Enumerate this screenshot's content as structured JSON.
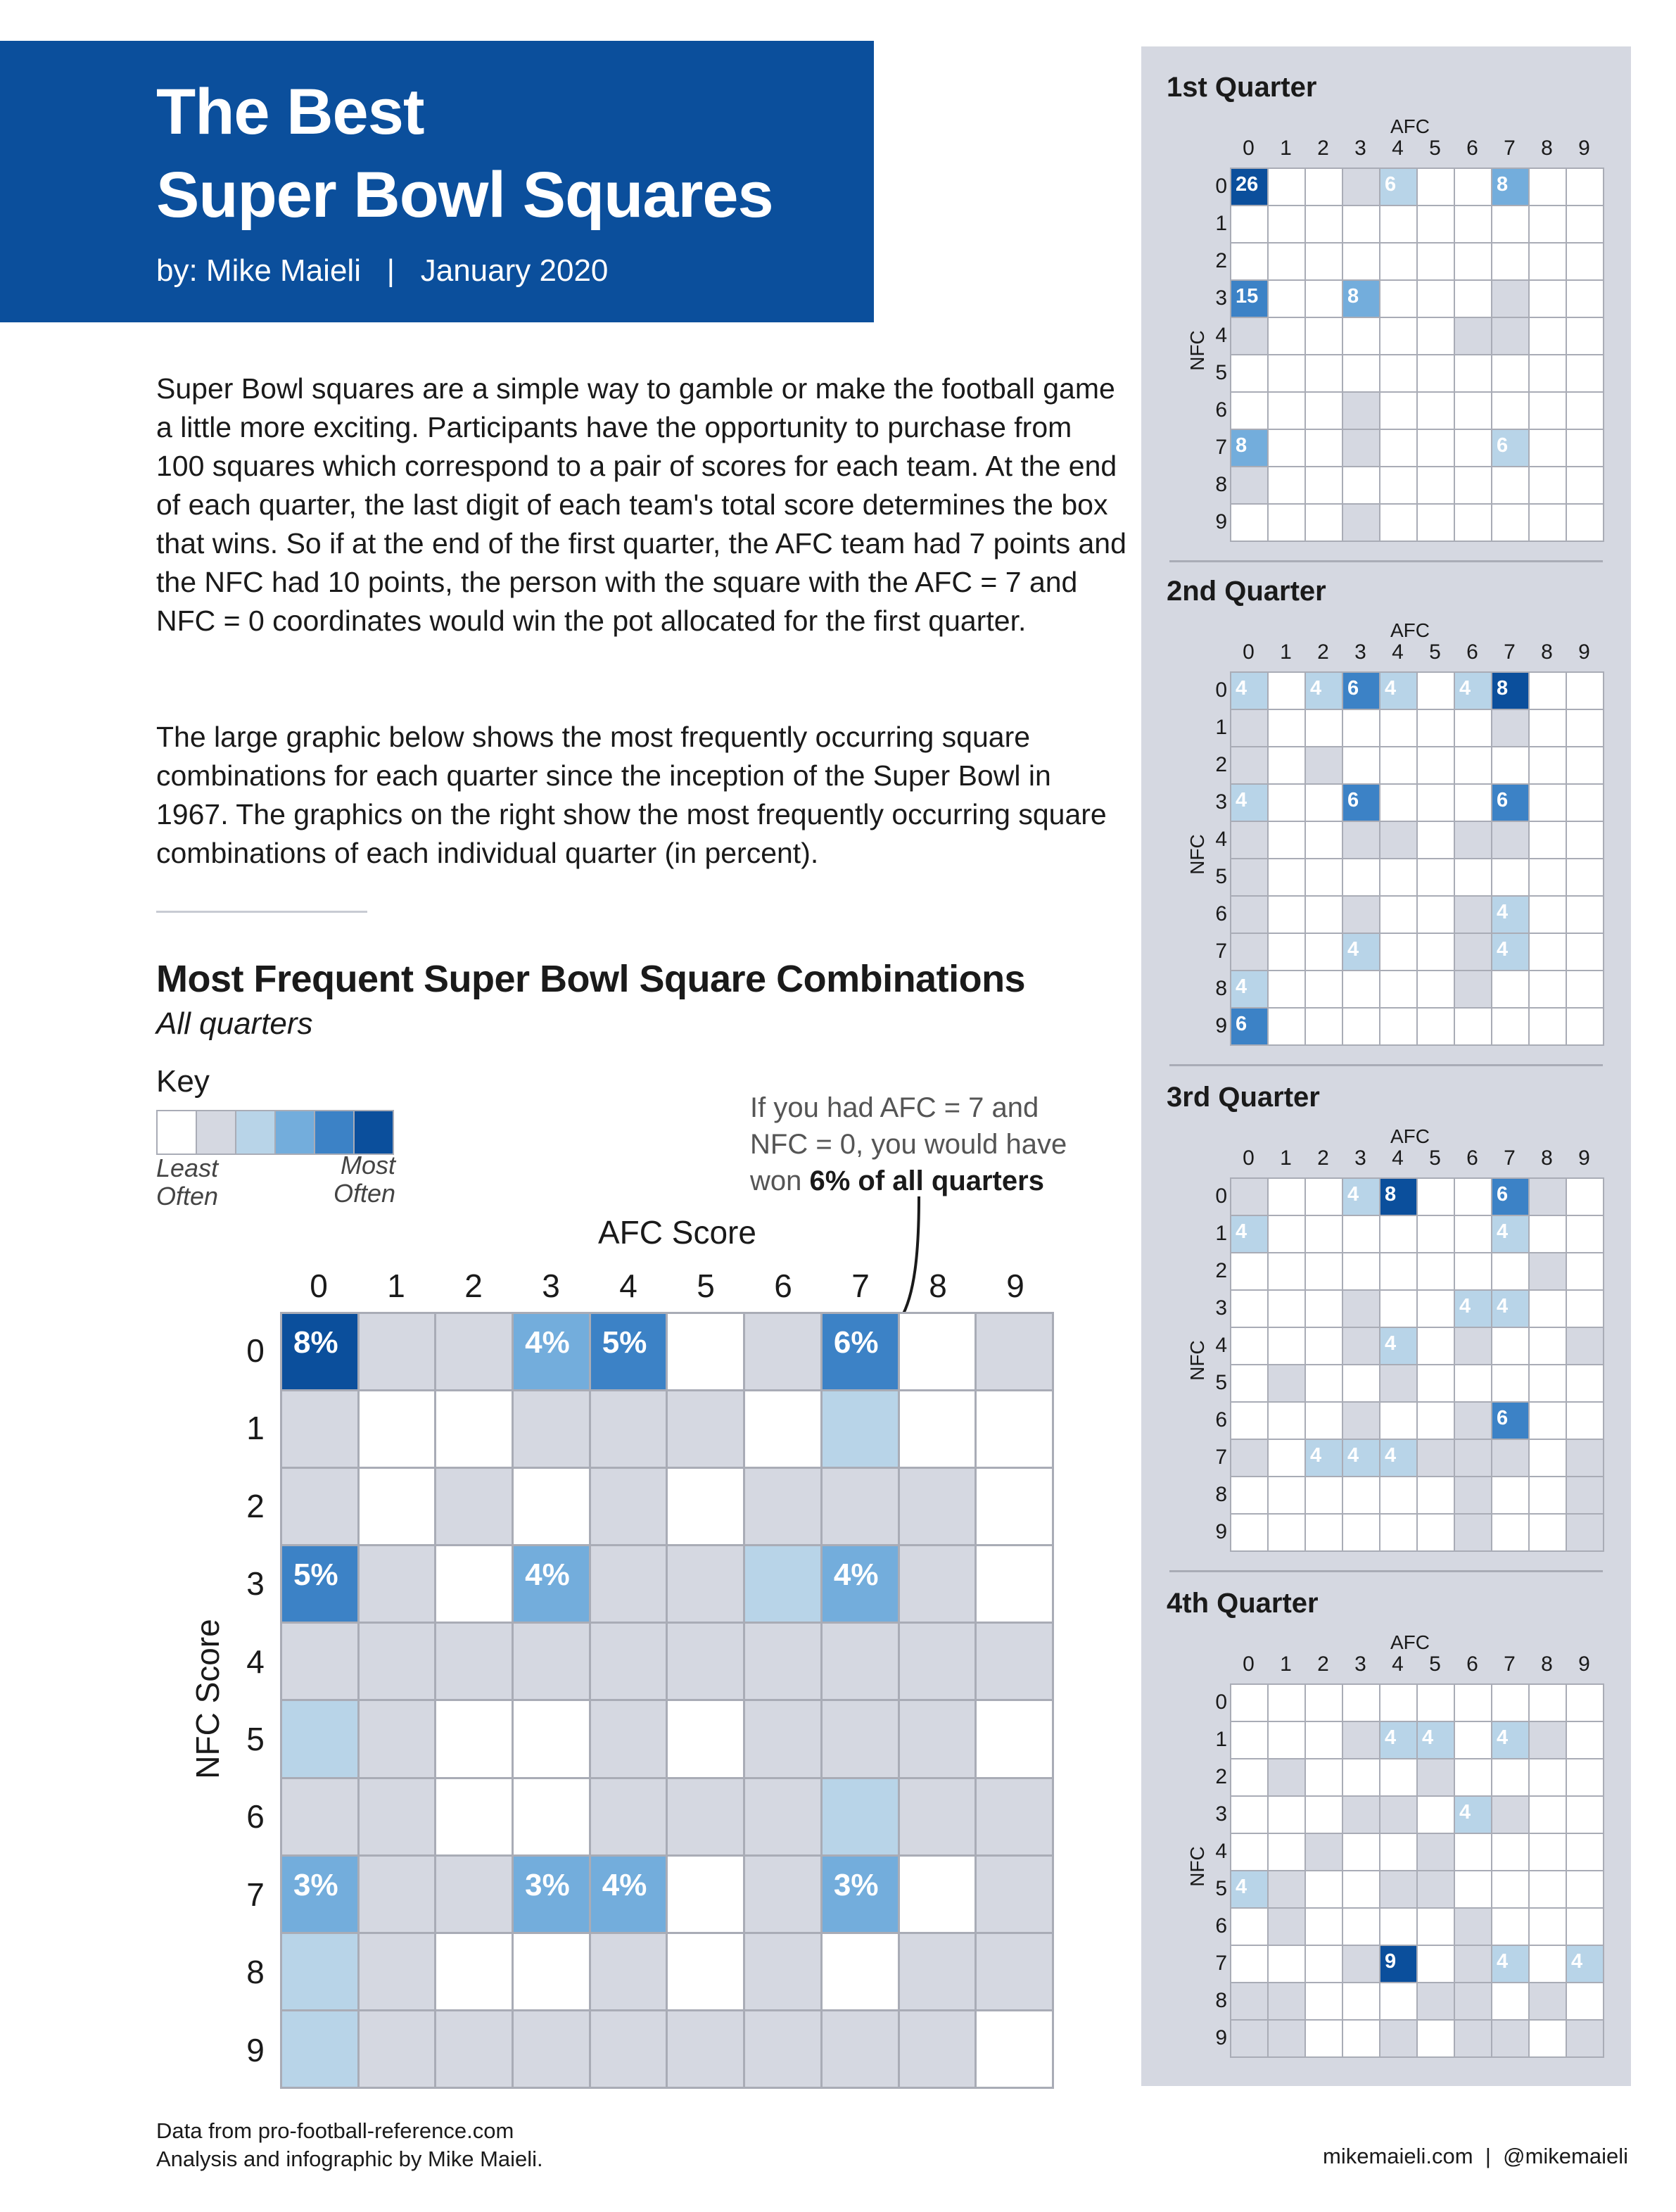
{
  "header": {
    "title": "The Best\nSuper Bowl Squares",
    "byline": "by: Mike Maieli   |   January 2020"
  },
  "intro": {
    "paragraph1": "Super Bowl squares are a simple way to gamble or make the football game a little more exciting. Participants have the opportunity to purchase from 100 squares which correspond to a pair of scores for each team. At the end of each quarter, the last digit of each team's total score determines the box that wins. So if at the end of the first quarter, the AFC team had 7 points and the NFC had 10 points, the person with the square with the AFC = 7 and NFC = 0 coordinates would win the pot allocated for the first quarter.",
    "paragraph2": "The large graphic below shows the most frequently occurring square combinations for each quarter since the inception of the Super Bowl in 1967. The graphics on the right show the most frequently occurring square combinations of each individual quarter (in percent)."
  },
  "key": {
    "label": "Key",
    "least": "Least\nOften",
    "most": "Most\nOften",
    "colors": [
      "#ffffff",
      "#d5d8e1",
      "#b8d4e8",
      "#73addc",
      "#3c82c6",
      "#0b4f9c"
    ]
  },
  "annotation": {
    "line1": "If you had AFC = 7 and",
    "line2": "NFC = 0, you would have",
    "line3_prefix": "won ",
    "line3_bold": "6% of all quarters"
  },
  "palette": [
    "#ffffff",
    "#d5d8e1",
    "#b8d4e8",
    "#73addc",
    "#3c82c6",
    "#0b4f9c"
  ],
  "chart_data": [
    {
      "type": "heatmap",
      "title": "Most Frequent Super Bowl Square Combinations",
      "subtitle": "All quarters",
      "xlabel": "AFC Score",
      "ylabel": "NFC Score",
      "x": [
        "0",
        "1",
        "2",
        "3",
        "4",
        "5",
        "6",
        "7",
        "8",
        "9"
      ],
      "y": [
        "0",
        "1",
        "2",
        "3",
        "4",
        "5",
        "6",
        "7",
        "8",
        "9"
      ],
      "value_format": "%",
      "labels": [
        [
          "8",
          "",
          "",
          "4",
          "5",
          "",
          "",
          "6",
          "",
          ""
        ],
        [
          "",
          "",
          "",
          "",
          "",
          "",
          "",
          "",
          "",
          ""
        ],
        [
          "",
          "",
          "",
          "",
          "",
          "",
          "",
          "",
          "",
          ""
        ],
        [
          "5",
          "",
          "",
          "4",
          "",
          "",
          "",
          "4",
          "",
          ""
        ],
        [
          "",
          "",
          "",
          "",
          "",
          "",
          "",
          "",
          "",
          ""
        ],
        [
          "",
          "",
          "",
          "",
          "",
          "",
          "",
          "",
          "",
          ""
        ],
        [
          "",
          "",
          "",
          "",
          "",
          "",
          "",
          "",
          "",
          ""
        ],
        [
          "3",
          "",
          "",
          "3",
          "4",
          "",
          "",
          "3",
          "",
          ""
        ],
        [
          "",
          "",
          "",
          "",
          "",
          "",
          "",
          "",
          "",
          ""
        ],
        [
          "",
          "",
          "",
          "",
          "",
          "",
          "",
          "",
          "",
          ""
        ]
      ],
      "levels": [
        [
          5,
          1,
          1,
          3,
          4,
          0,
          1,
          4,
          0,
          1
        ],
        [
          1,
          0,
          0,
          1,
          1,
          1,
          0,
          2,
          0,
          0
        ],
        [
          1,
          0,
          1,
          0,
          1,
          0,
          1,
          1,
          1,
          0
        ],
        [
          4,
          1,
          0,
          3,
          1,
          1,
          2,
          3,
          1,
          0
        ],
        [
          1,
          1,
          1,
          1,
          1,
          1,
          1,
          1,
          1,
          1
        ],
        [
          2,
          1,
          0,
          0,
          1,
          0,
          1,
          1,
          1,
          0
        ],
        [
          1,
          1,
          0,
          0,
          1,
          1,
          1,
          2,
          1,
          1
        ],
        [
          3,
          1,
          1,
          3,
          3,
          0,
          1,
          3,
          0,
          1
        ],
        [
          2,
          1,
          0,
          0,
          1,
          0,
          1,
          0,
          1,
          1
        ],
        [
          2,
          1,
          1,
          1,
          1,
          1,
          1,
          1,
          1,
          0
        ]
      ]
    },
    {
      "type": "heatmap",
      "title": "1st Quarter",
      "xlabel": "AFC",
      "ylabel": "NFC",
      "x": [
        "0",
        "1",
        "2",
        "3",
        "4",
        "5",
        "6",
        "7",
        "8",
        "9"
      ],
      "y": [
        "0",
        "1",
        "2",
        "3",
        "4",
        "5",
        "6",
        "7",
        "8",
        "9"
      ],
      "labels": [
        [
          "26",
          "",
          "",
          "",
          "6",
          "",
          "",
          "8",
          "",
          ""
        ],
        [
          "",
          "",
          "",
          "",
          "",
          "",
          "",
          "",
          "",
          ""
        ],
        [
          "",
          "",
          "",
          "",
          "",
          "",
          "",
          "",
          "",
          ""
        ],
        [
          "15",
          "",
          "",
          "8",
          "",
          "",
          "",
          "",
          "",
          ""
        ],
        [
          "",
          "",
          "",
          "",
          "",
          "",
          "",
          "",
          "",
          ""
        ],
        [
          "",
          "",
          "",
          "",
          "",
          "",
          "",
          "",
          "",
          ""
        ],
        [
          "",
          "",
          "",
          "",
          "",
          "",
          "",
          "",
          "",
          ""
        ],
        [
          "8",
          "",
          "",
          "",
          "",
          "",
          "",
          "6",
          "",
          ""
        ],
        [
          "",
          "",
          "",
          "",
          "",
          "",
          "",
          "",
          "",
          ""
        ],
        [
          "",
          "",
          "",
          "",
          "",
          "",
          "",
          "",
          "",
          ""
        ]
      ],
      "levels": [
        [
          5,
          0,
          0,
          1,
          2,
          0,
          0,
          3,
          0,
          0
        ],
        [
          0,
          0,
          0,
          0,
          0,
          0,
          0,
          0,
          0,
          0
        ],
        [
          0,
          0,
          0,
          0,
          0,
          0,
          0,
          0,
          0,
          0
        ],
        [
          4,
          0,
          0,
          3,
          0,
          0,
          0,
          1,
          0,
          0
        ],
        [
          1,
          0,
          0,
          0,
          0,
          0,
          1,
          1,
          0,
          0
        ],
        [
          0,
          0,
          0,
          0,
          0,
          0,
          0,
          0,
          0,
          0
        ],
        [
          0,
          0,
          0,
          1,
          0,
          0,
          0,
          0,
          0,
          0
        ],
        [
          3,
          0,
          0,
          1,
          0,
          0,
          0,
          2,
          0,
          0
        ],
        [
          1,
          0,
          0,
          0,
          0,
          0,
          0,
          0,
          0,
          0
        ],
        [
          0,
          0,
          0,
          1,
          0,
          0,
          0,
          0,
          0,
          0
        ]
      ]
    },
    {
      "type": "heatmap",
      "title": "2nd Quarter",
      "xlabel": "AFC",
      "ylabel": "NFC",
      "x": [
        "0",
        "1",
        "2",
        "3",
        "4",
        "5",
        "6",
        "7",
        "8",
        "9"
      ],
      "y": [
        "0",
        "1",
        "2",
        "3",
        "4",
        "5",
        "6",
        "7",
        "8",
        "9"
      ],
      "labels": [
        [
          "4",
          "",
          "4",
          "6",
          "4",
          "",
          "4",
          "8",
          "",
          ""
        ],
        [
          "",
          "",
          "",
          "",
          "",
          "",
          "",
          "",
          "",
          ""
        ],
        [
          "",
          "",
          "",
          "",
          "",
          "",
          "",
          "",
          "",
          ""
        ],
        [
          "4",
          "",
          "",
          "6",
          "",
          "",
          "",
          "6",
          "",
          ""
        ],
        [
          "",
          "",
          "",
          "",
          "",
          "",
          "",
          "",
          "",
          ""
        ],
        [
          "",
          "",
          "",
          "",
          "",
          "",
          "",
          "",
          "",
          ""
        ],
        [
          "",
          "",
          "",
          "",
          "",
          "",
          "",
          "4",
          "",
          ""
        ],
        [
          "",
          "",
          "",
          "4",
          "",
          "",
          "",
          "4",
          "",
          ""
        ],
        [
          "4",
          "",
          "",
          "",
          "",
          "",
          "",
          "",
          "",
          ""
        ],
        [
          "6",
          "",
          "",
          "",
          "",
          "",
          "",
          "",
          "",
          ""
        ]
      ],
      "levels": [
        [
          2,
          0,
          2,
          4,
          2,
          0,
          2,
          5,
          0,
          0
        ],
        [
          1,
          0,
          0,
          0,
          0,
          0,
          0,
          1,
          0,
          0
        ],
        [
          1,
          0,
          1,
          0,
          0,
          0,
          0,
          0,
          0,
          0
        ],
        [
          2,
          0,
          0,
          4,
          0,
          0,
          0,
          4,
          0,
          0
        ],
        [
          1,
          0,
          0,
          1,
          1,
          0,
          1,
          1,
          0,
          0
        ],
        [
          1,
          0,
          0,
          0,
          0,
          0,
          0,
          0,
          0,
          0
        ],
        [
          1,
          0,
          0,
          1,
          0,
          0,
          1,
          2,
          0,
          0
        ],
        [
          1,
          0,
          0,
          2,
          0,
          0,
          1,
          2,
          0,
          0
        ],
        [
          2,
          0,
          0,
          0,
          0,
          0,
          1,
          0,
          0,
          0
        ],
        [
          4,
          0,
          0,
          0,
          0,
          0,
          0,
          0,
          0,
          0
        ]
      ]
    },
    {
      "type": "heatmap",
      "title": "3rd Quarter",
      "xlabel": "AFC",
      "ylabel": "NFC",
      "x": [
        "0",
        "1",
        "2",
        "3",
        "4",
        "5",
        "6",
        "7",
        "8",
        "9"
      ],
      "y": [
        "0",
        "1",
        "2",
        "3",
        "4",
        "5",
        "6",
        "7",
        "8",
        "9"
      ],
      "labels": [
        [
          "",
          "",
          "",
          "4",
          "8",
          "",
          "",
          "6",
          "",
          ""
        ],
        [
          "4",
          "",
          "",
          "",
          "",
          "",
          "",
          "4",
          "",
          ""
        ],
        [
          "",
          "",
          "",
          "",
          "",
          "",
          "",
          "",
          "",
          ""
        ],
        [
          "",
          "",
          "",
          "",
          "",
          "",
          "4",
          "4",
          "",
          ""
        ],
        [
          "",
          "",
          "",
          "",
          "4",
          "",
          "",
          "",
          "",
          ""
        ],
        [
          "",
          "",
          "",
          "",
          "",
          "",
          "",
          "",
          "",
          ""
        ],
        [
          "",
          "",
          "",
          "",
          "",
          "",
          "",
          "6",
          "",
          ""
        ],
        [
          "",
          "",
          "4",
          "4",
          "4",
          "",
          "",
          "",
          "",
          ""
        ],
        [
          "",
          "",
          "",
          "",
          "",
          "",
          "",
          "",
          "",
          ""
        ],
        [
          "",
          "",
          "",
          "",
          "",
          "",
          "",
          "",
          "",
          ""
        ]
      ],
      "levels": [
        [
          1,
          0,
          0,
          2,
          5,
          0,
          0,
          4,
          1,
          0
        ],
        [
          2,
          0,
          0,
          0,
          0,
          0,
          0,
          2,
          0,
          0
        ],
        [
          0,
          0,
          0,
          0,
          0,
          0,
          0,
          0,
          1,
          0
        ],
        [
          0,
          0,
          0,
          1,
          0,
          0,
          2,
          2,
          0,
          0
        ],
        [
          0,
          0,
          0,
          1,
          2,
          0,
          1,
          0,
          0,
          1
        ],
        [
          0,
          1,
          0,
          0,
          1,
          0,
          0,
          0,
          0,
          0
        ],
        [
          0,
          0,
          0,
          1,
          0,
          0,
          1,
          4,
          0,
          0
        ],
        [
          1,
          0,
          2,
          2,
          2,
          1,
          1,
          1,
          0,
          1
        ],
        [
          0,
          0,
          0,
          0,
          0,
          0,
          1,
          0,
          0,
          1
        ],
        [
          0,
          0,
          0,
          0,
          0,
          0,
          1,
          0,
          0,
          1
        ]
      ]
    },
    {
      "type": "heatmap",
      "title": "4th Quarter",
      "xlabel": "AFC",
      "ylabel": "NFC",
      "x": [
        "0",
        "1",
        "2",
        "3",
        "4",
        "5",
        "6",
        "7",
        "8",
        "9"
      ],
      "y": [
        "0",
        "1",
        "2",
        "3",
        "4",
        "5",
        "6",
        "7",
        "8",
        "9"
      ],
      "labels": [
        [
          "",
          "",
          "",
          "",
          "",
          "",
          "",
          "",
          "",
          ""
        ],
        [
          "",
          "",
          "",
          "",
          "4",
          "4",
          "",
          "4",
          "",
          ""
        ],
        [
          "",
          "",
          "",
          "",
          "",
          "",
          "",
          "",
          "",
          ""
        ],
        [
          "",
          "",
          "",
          "",
          "",
          "",
          "4",
          "",
          "",
          ""
        ],
        [
          "",
          "",
          "",
          "",
          "",
          "",
          "",
          "",
          "",
          ""
        ],
        [
          "4",
          "",
          "",
          "",
          "",
          "",
          "",
          "",
          "",
          ""
        ],
        [
          "",
          "",
          "",
          "",
          "",
          "",
          "",
          "",
          "",
          ""
        ],
        [
          "",
          "",
          "",
          "",
          "9",
          "",
          "",
          "4",
          "",
          "4"
        ],
        [
          "",
          "",
          "",
          "",
          "",
          "",
          "",
          "",
          "",
          ""
        ],
        [
          "",
          "",
          "",
          "",
          "",
          "",
          "",
          "",
          "",
          ""
        ]
      ],
      "levels": [
        [
          0,
          0,
          0,
          0,
          0,
          0,
          0,
          0,
          0,
          0
        ],
        [
          0,
          0,
          0,
          1,
          2,
          2,
          0,
          2,
          1,
          0
        ],
        [
          0,
          1,
          0,
          0,
          0,
          1,
          0,
          0,
          0,
          0
        ],
        [
          0,
          0,
          0,
          1,
          1,
          0,
          2,
          1,
          0,
          0
        ],
        [
          0,
          0,
          1,
          0,
          0,
          1,
          0,
          0,
          0,
          0
        ],
        [
          2,
          1,
          0,
          0,
          1,
          1,
          0,
          0,
          0,
          0
        ],
        [
          0,
          1,
          0,
          0,
          0,
          0,
          1,
          0,
          0,
          0
        ],
        [
          0,
          0,
          0,
          1,
          5,
          0,
          1,
          2,
          0,
          2
        ],
        [
          1,
          1,
          0,
          0,
          0,
          1,
          1,
          0,
          1,
          0
        ],
        [
          1,
          1,
          0,
          0,
          1,
          0,
          1,
          1,
          0,
          1
        ]
      ]
    }
  ],
  "footer": {
    "left": "Data from pro-football-reference.com\nAnalysis and infographic by Mike Maieli.",
    "right": "mikemaieli.com  |  @mikemaieli"
  }
}
